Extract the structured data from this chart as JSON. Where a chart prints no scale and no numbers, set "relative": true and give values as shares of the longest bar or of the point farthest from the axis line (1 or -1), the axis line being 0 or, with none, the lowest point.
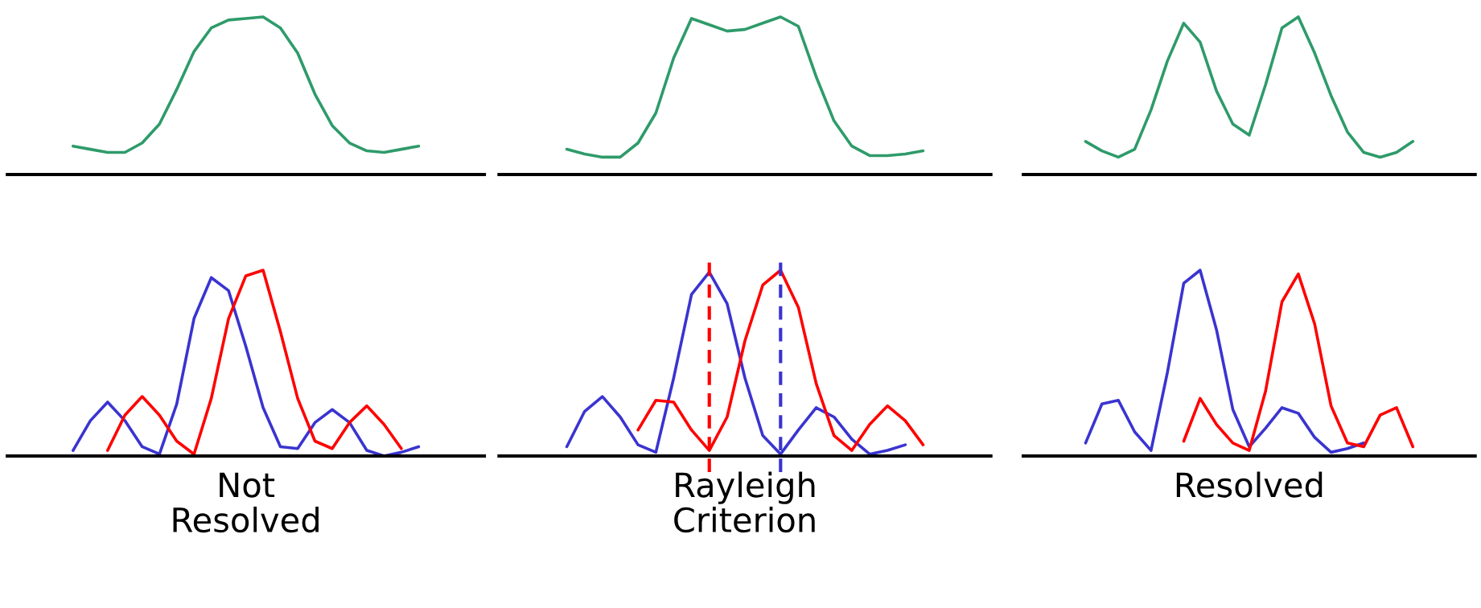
{
  "chart_data": [
    {
      "type": "line",
      "relative": true,
      "tick_labels": false,
      "categories": [
        null,
        null,
        null,
        null,
        null,
        null,
        null,
        null,
        null,
        null,
        null,
        null,
        null,
        null,
        null,
        null,
        null,
        null,
        null,
        null,
        null
      ],
      "series": [
        {
          "color": "#2e9b6a",
          "values": [
            0.18,
            0.16,
            0.14,
            0.14,
            0.2,
            0.32,
            0.54,
            0.78,
            0.93,
            0.98,
            0.99,
            1,
            0.93,
            0.77,
            0.51,
            0.31,
            0.2,
            0.15,
            0.14,
            0.16,
            0.18
          ]
        }
      ]
    },
    {
      "type": "line",
      "relative": true,
      "tick_labels": false,
      "categories": [
        null,
        null,
        null,
        null,
        null,
        null,
        null,
        null,
        null,
        null,
        null,
        null,
        null,
        null,
        null,
        null,
        null,
        null,
        null,
        null,
        null
      ],
      "series": [
        {
          "color": "#2e9b6a",
          "values": [
            0.16,
            0.13,
            0.11,
            0.11,
            0.2,
            0.39,
            0.74,
            0.99,
            0.95,
            0.91,
            0.92,
            0.96,
            1,
            0.94,
            0.62,
            0.34,
            0.18,
            0.12,
            0.12,
            0.13,
            0.15
          ]
        }
      ]
    },
    {
      "type": "line",
      "relative": true,
      "tick_labels": false,
      "categories": [
        null,
        null,
        null,
        null,
        null,
        null,
        null,
        null,
        null,
        null,
        null,
        null,
        null,
        null,
        null,
        null,
        null,
        null,
        null,
        null,
        null
      ],
      "series": [
        {
          "color": "#2e9b6a",
          "values": [
            0.21,
            0.15,
            0.11,
            0.16,
            0.41,
            0.72,
            0.96,
            0.84,
            0.53,
            0.32,
            0.25,
            0.57,
            0.93,
            1,
            0.77,
            0.5,
            0.27,
            0.14,
            0.11,
            0.14,
            0.21
          ]
        }
      ]
    },
    {
      "type": "line",
      "relative": true,
      "tick_labels": false,
      "xlabel": "Not\nResolved",
      "categories": [
        null,
        null,
        null,
        null,
        null,
        null,
        null,
        null,
        null,
        null,
        null,
        null,
        null,
        null,
        null,
        null,
        null,
        null,
        null,
        null,
        null
      ],
      "series": [
        {
          "color": "#3a34d0",
          "values": [
            0.03,
            0.19,
            0.29,
            0.19,
            0.05,
            0.01,
            0.28,
            0.74,
            0.96,
            0.89,
            0.59,
            0.26,
            0.05,
            0.04,
            0.18,
            0.25,
            0.18,
            0.03,
            0,
            0.02,
            0.05
          ]
        },
        {
          "color": "#ff0000",
          "values": [
            null,
            null,
            0.03,
            0.22,
            0.32,
            0.22,
            0.08,
            0.01,
            0.31,
            0.74,
            0.97,
            1,
            0.67,
            0.31,
            0.08,
            0.04,
            0.18,
            0.27,
            0.17,
            0.04,
            null
          ]
        }
      ]
    },
    {
      "type": "line",
      "relative": true,
      "tick_labels": false,
      "xlabel": "Rayleigh\nCriterion",
      "categories": [
        null,
        null,
        null,
        null,
        null,
        null,
        null,
        null,
        null,
        null,
        null,
        null,
        null,
        null,
        null,
        null,
        null,
        null,
        null,
        null,
        null
      ],
      "series": [
        {
          "color": "#3a34d0",
          "values": [
            0.05,
            0.24,
            0.32,
            0.21,
            0.06,
            0.02,
            0.42,
            0.87,
            0.99,
            0.82,
            0.42,
            0.11,
            0.01,
            0.14,
            0.26,
            0.21,
            0.09,
            0.01,
            0.03,
            0.06,
            null
          ]
        },
        {
          "color": "#ff0000",
          "values": [
            null,
            null,
            null,
            null,
            0.14,
            0.3,
            0.29,
            0.14,
            0.03,
            0.21,
            0.62,
            0.92,
            1,
            0.8,
            0.39,
            0.11,
            0.03,
            0.17,
            0.27,
            0.19,
            0.06
          ]
        }
      ]
    },
    {
      "type": "line",
      "relative": true,
      "tick_labels": false,
      "xlabel": "Resolved",
      "categories": [
        null,
        null,
        null,
        null,
        null,
        null,
        null,
        null,
        null,
        null,
        null,
        null,
        null,
        null,
        null,
        null,
        null,
        null,
        null,
        null,
        null
      ],
      "series": [
        {
          "color": "#3a34d0",
          "values": [
            0.07,
            0.28,
            0.3,
            0.13,
            0.03,
            0.45,
            0.93,
            1,
            0.68,
            0.25,
            0.05,
            0.15,
            0.26,
            0.23,
            0.1,
            0.02,
            0.04,
            0.07,
            null,
            null,
            null
          ]
        },
        {
          "color": "#ff0000",
          "values": [
            null,
            null,
            null,
            null,
            null,
            null,
            0.08,
            0.31,
            0.17,
            0.07,
            0.03,
            0.35,
            0.83,
            0.98,
            0.71,
            0.27,
            0.07,
            0.05,
            0.22,
            0.26,
            0.05
          ]
        }
      ]
    }
  ]
}
